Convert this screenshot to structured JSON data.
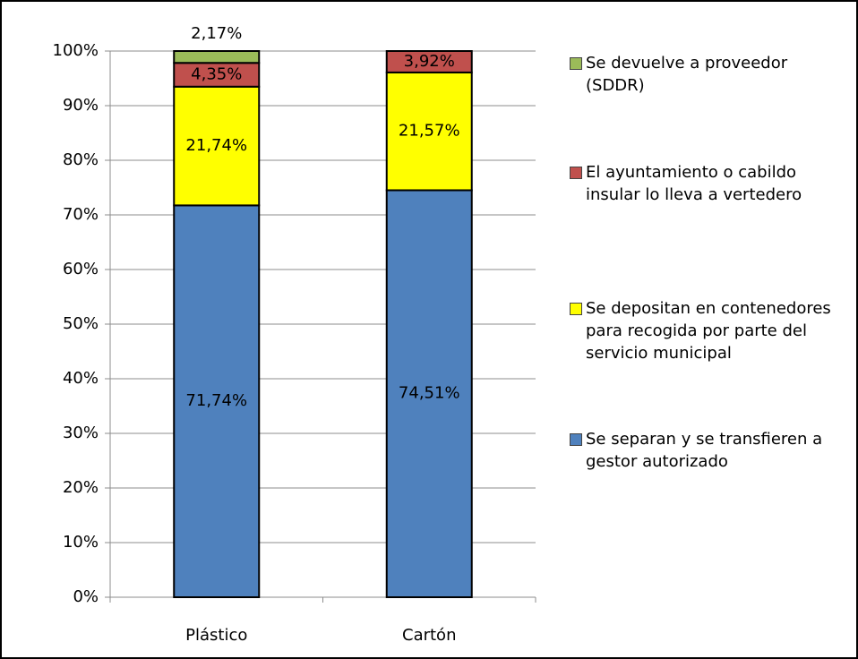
{
  "chart_data": {
    "type": "stacked_bar",
    "categories": [
      "Plástico",
      "Cartón"
    ],
    "series": [
      {
        "name": "Se separan y se transfieren a gestor autorizado",
        "color": "#4f81bd",
        "values": [
          71.74,
          74.51
        ],
        "value_labels": [
          "71,74%",
          "74,51%"
        ]
      },
      {
        "name": "Se depositan en contenedores para recogida por parte del servicio municipal",
        "color": "#ffff00",
        "values": [
          21.74,
          21.57
        ],
        "value_labels": [
          "21,74%",
          "21,57%"
        ]
      },
      {
        "name": "El ayuntamiento o cabildo insular lo lleva a vertedero",
        "color": "#c0504d",
        "values": [
          4.35,
          3.92
        ],
        "value_labels": [
          "4,35%",
          "3,92%"
        ]
      },
      {
        "name": "Se devuelve a proveedor (SDDR)",
        "color": "#9bbb59",
        "values": [
          2.17,
          0
        ],
        "value_labels": [
          "2,17%",
          null
        ]
      }
    ],
    "ylim": [
      0,
      100
    ],
    "yticks": [
      {
        "value": 0,
        "label": "0%"
      },
      {
        "value": 10,
        "label": "10%"
      },
      {
        "value": 20,
        "label": "20%"
      },
      {
        "value": 30,
        "label": "30%"
      },
      {
        "value": 40,
        "label": "40%"
      },
      {
        "value": 50,
        "label": "50%"
      },
      {
        "value": 60,
        "label": "60%"
      },
      {
        "value": 70,
        "label": "70%"
      },
      {
        "value": 80,
        "label": "80%"
      },
      {
        "value": 90,
        "label": "90%"
      },
      {
        "value": 100,
        "label": "100%"
      }
    ],
    "grid": true,
    "legend": "right"
  }
}
